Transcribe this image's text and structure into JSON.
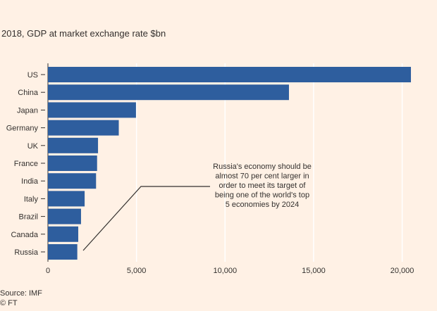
{
  "chart_data": {
    "type": "bar",
    "orientation": "horizontal",
    "title": "2018, GDP at market exchange rate $bn",
    "categories": [
      "US",
      "China",
      "Japan",
      "Germany",
      "UK",
      "France",
      "India",
      "Italy",
      "Brazil",
      "Canada",
      "Russia"
    ],
    "values": [
      20494,
      13608,
      4971,
      4000,
      2828,
      2775,
      2717,
      2072,
      1868,
      1712,
      1658
    ],
    "xlim": [
      0,
      22000
    ],
    "xticks": [
      0,
      5000,
      10000,
      15000,
      20000
    ],
    "xtick_labels": [
      "0",
      "5,000",
      "10,000",
      "15,000",
      "20,000"
    ],
    "grid": true,
    "legend": "none",
    "annotation": {
      "text": "Russia's economy should be almost 70 per cent larger in order to meet its target of being one of the world's top 5 economies by 2024",
      "target_category": "Russia"
    },
    "colors": {
      "bar": "#2e5e9e",
      "background": "#fff1e5",
      "grid": "#ffffff",
      "text": "#33302e"
    }
  },
  "footer": {
    "source": "Source: IMF",
    "credit": "© FT"
  }
}
